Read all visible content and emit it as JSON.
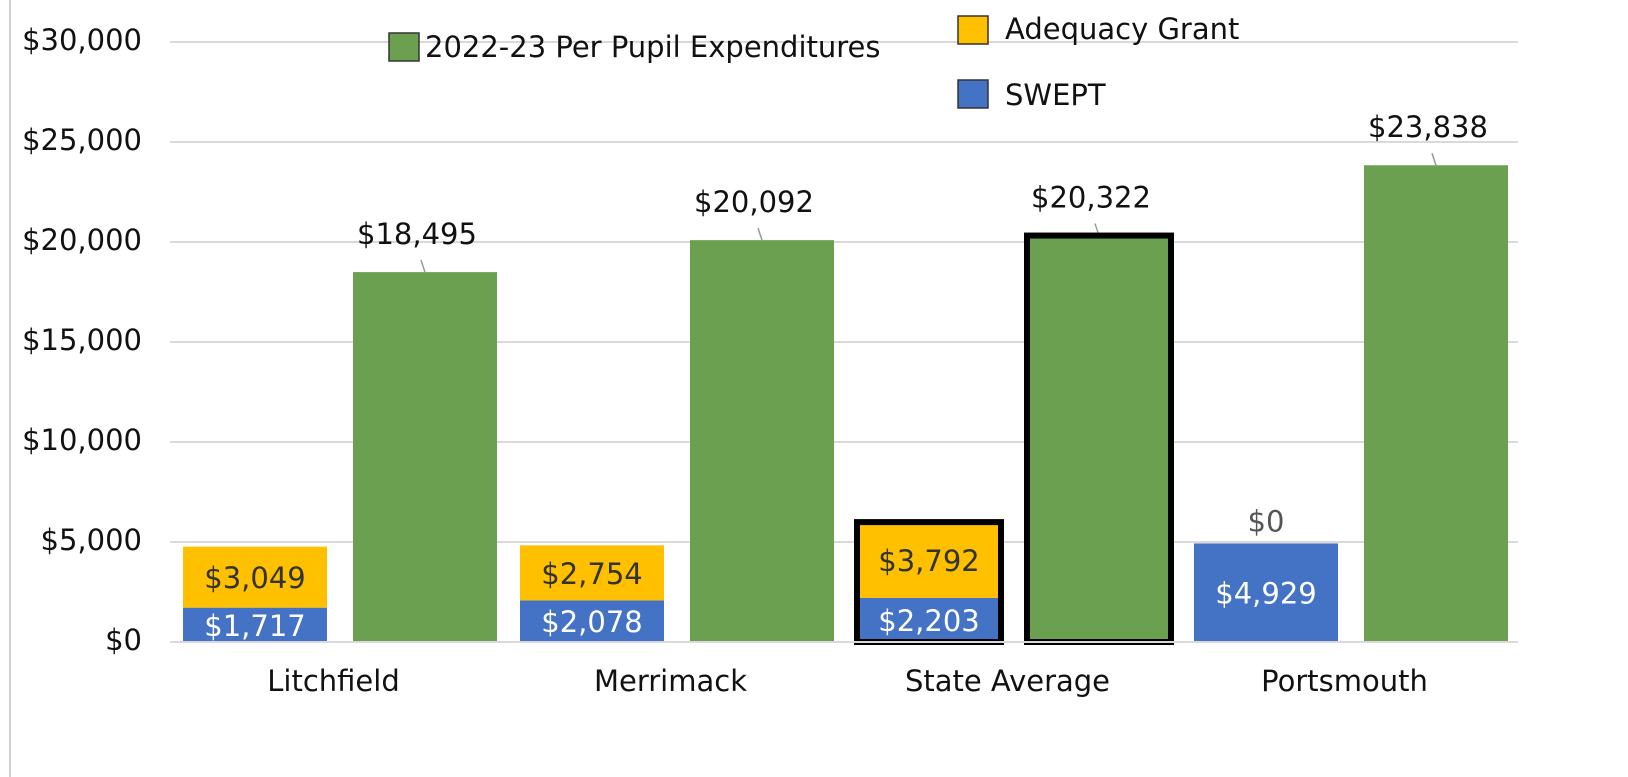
{
  "chart_data": {
    "type": "bar",
    "categories": [
      "Litchfield",
      "Merrimack",
      "State Average",
      "Portsmouth"
    ],
    "series": [
      {
        "name": "SWEPT",
        "color": "#4472c4",
        "stack": 0,
        "values": [
          1717,
          2078,
          2203,
          4929
        ],
        "value_labels": [
          "$1,717",
          "$2,078",
          "$2,203",
          "$4,929"
        ]
      },
      {
        "name": "Adequacy Grant",
        "color": "#ffc000",
        "stack": 0,
        "values": [
          3049,
          2754,
          3792,
          0
        ],
        "value_labels": [
          "$3,049",
          "$2,754",
          "$3,792",
          "$0"
        ]
      },
      {
        "name": "2022-23 Per Pupil Expenditures",
        "color": "#6aa050",
        "stack": 1,
        "values": [
          18495,
          20092,
          20322,
          23838
        ],
        "value_labels": [
          "$18,495",
          "$20,092",
          "$20,322",
          "$23,838"
        ]
      }
    ],
    "ylim": [
      0,
      30000
    ],
    "yticks": [
      {
        "value": 0,
        "label": "$0"
      },
      {
        "value": 5000,
        "label": "$5,000"
      },
      {
        "value": 10000,
        "label": "$10,000"
      },
      {
        "value": 15000,
        "label": "$15,000"
      },
      {
        "value": 20000,
        "label": "$20,000"
      },
      {
        "value": 25000,
        "label": "$25,000"
      },
      {
        "value": 30000,
        "label": "$30,000"
      }
    ],
    "grid": true,
    "legend": "top",
    "highlight_category": 2
  }
}
